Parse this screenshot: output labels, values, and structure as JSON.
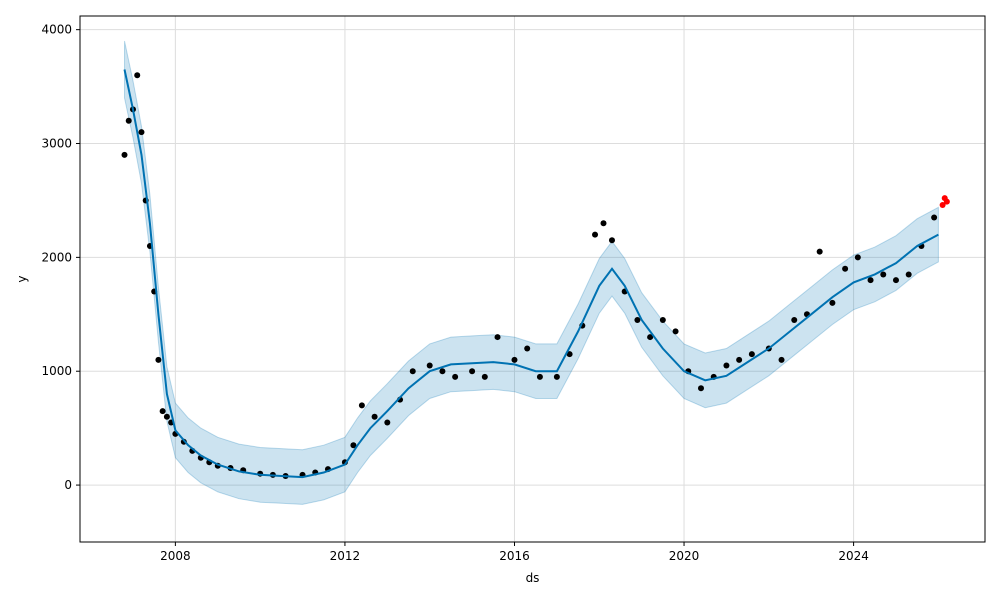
{
  "chart_data": {
    "type": "line",
    "xlabel": "ds",
    "ylabel": "y",
    "xlim": [
      2005.75,
      2027.1
    ],
    "ylim": [
      -500,
      4120
    ],
    "x_ticks": [
      2008,
      2012,
      2016,
      2020,
      2024
    ],
    "x_tick_labels": [
      "2008",
      "2012",
      "2016",
      "2020",
      "2024"
    ],
    "y_ticks": [
      0,
      1000,
      2000,
      3000,
      4000
    ],
    "y_tick_labels": [
      "0",
      "1000",
      "2000",
      "3000",
      "4000"
    ],
    "grid": true,
    "colors": {
      "forecast_line": "#0072B2",
      "uncertainty_band": "#0072B2",
      "observed_points": "#000000",
      "holdout_points": "#ff0000"
    },
    "series": [
      {
        "role": "forecast",
        "x": [
          2006.8,
          2007.0,
          2007.2,
          2007.4,
          2007.6,
          2007.8,
          2008.0,
          2008.3,
          2008.6,
          2009.0,
          2009.5,
          2010.0,
          2010.5,
          2011.0,
          2011.5,
          2012.0,
          2012.3,
          2012.6,
          2013.0,
          2013.5,
          2014.0,
          2014.5,
          2015.0,
          2015.5,
          2016.0,
          2016.5,
          2017.0,
          2017.5,
          2018.0,
          2018.3,
          2018.6,
          2019.0,
          2019.5,
          2020.0,
          2020.5,
          2021.0,
          2021.5,
          2022.0,
          2022.5,
          2023.0,
          2023.5,
          2024.0,
          2024.5,
          2025.0,
          2025.5,
          2026.0
        ],
        "y": [
          3650,
          3300,
          2900,
          2300,
          1500,
          800,
          480,
          350,
          260,
          180,
          120,
          90,
          80,
          70,
          110,
          180,
          350,
          500,
          650,
          850,
          1000,
          1060,
          1070,
          1080,
          1060,
          1000,
          1000,
          1350,
          1750,
          1900,
          1750,
          1450,
          1200,
          1000,
          920,
          960,
          1080,
          1200,
          1350,
          1500,
          1650,
          1780,
          1850,
          1950,
          2100,
          2200
        ],
        "lower": [
          3400,
          3050,
          2650,
          2050,
          1260,
          560,
          240,
          110,
          20,
          -60,
          -120,
          -150,
          -160,
          -170,
          -130,
          -60,
          110,
          260,
          410,
          610,
          760,
          820,
          830,
          840,
          820,
          760,
          760,
          1110,
          1510,
          1660,
          1510,
          1210,
          960,
          760,
          680,
          720,
          840,
          960,
          1110,
          1260,
          1410,
          1540,
          1610,
          1710,
          1860,
          1960
        ],
        "upper": [
          3900,
          3550,
          3150,
          2550,
          1740,
          1040,
          720,
          590,
          500,
          420,
          360,
          330,
          320,
          310,
          350,
          420,
          590,
          740,
          890,
          1090,
          1240,
          1300,
          1310,
          1320,
          1300,
          1240,
          1240,
          1590,
          1990,
          2140,
          1990,
          1690,
          1440,
          1240,
          1160,
          1200,
          1320,
          1440,
          1590,
          1740,
          1890,
          2020,
          2090,
          2190,
          2340,
          2440
        ]
      },
      {
        "role": "observed",
        "x": [
          2006.8,
          2006.9,
          2007.0,
          2007.1,
          2007.2,
          2007.3,
          2007.4,
          2007.5,
          2007.6,
          2007.7,
          2007.8,
          2007.9,
          2008.0,
          2008.2,
          2008.4,
          2008.6,
          2008.8,
          2009.0,
          2009.3,
          2009.6,
          2010.0,
          2010.3,
          2010.6,
          2011.0,
          2011.3,
          2011.6,
          2012.0,
          2012.2,
          2012.4,
          2012.7,
          2013.0,
          2013.3,
          2013.6,
          2014.0,
          2014.3,
          2014.6,
          2015.0,
          2015.3,
          2015.6,
          2016.0,
          2016.3,
          2016.6,
          2017.0,
          2017.3,
          2017.6,
          2017.9,
          2018.1,
          2018.3,
          2018.6,
          2018.9,
          2019.2,
          2019.5,
          2019.8,
          2020.1,
          2020.4,
          2020.7,
          2021.0,
          2021.3,
          2021.6,
          2022.0,
          2022.3,
          2022.6,
          2022.9,
          2023.2,
          2023.5,
          2023.8,
          2024.1,
          2024.4,
          2024.7,
          2025.0,
          2025.3,
          2025.6,
          2025.9
        ],
        "y": [
          2900,
          3200,
          3300,
          3600,
          3100,
          2500,
          2100,
          1700,
          1100,
          650,
          600,
          550,
          450,
          380,
          300,
          240,
          200,
          170,
          150,
          130,
          100,
          90,
          80,
          90,
          110,
          140,
          200,
          350,
          700,
          600,
          550,
          750,
          1000,
          1050,
          1000,
          950,
          1000,
          950,
          1300,
          1100,
          1200,
          950,
          950,
          1150,
          1400,
          2200,
          2300,
          2150,
          1700,
          1450,
          1300,
          1450,
          1350,
          1000,
          850,
          950,
          1050,
          1100,
          1150,
          1200,
          1100,
          1450,
          1500,
          2050,
          1600,
          1900,
          2000,
          1800,
          1850,
          1800,
          1850,
          2100,
          2350
        ]
      },
      {
        "role": "holdout",
        "x": [
          2026.1,
          2026.15,
          2026.2
        ],
        "y": [
          2460,
          2520,
          2490
        ]
      }
    ]
  }
}
